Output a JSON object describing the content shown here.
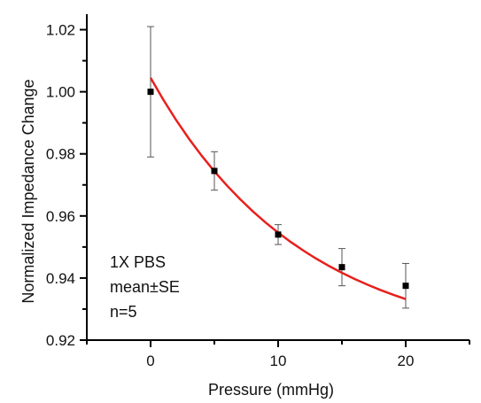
{
  "chart_data": {
    "type": "scatter",
    "xlabel": "Pressure (mmHg)",
    "ylabel": "Normalized Impedance Change",
    "xlim": [
      -5,
      25
    ],
    "ylim": [
      0.92,
      1.025
    ],
    "xticks": [
      0,
      10,
      20
    ],
    "xtick_labels": [
      "0",
      "10",
      "20"
    ],
    "xminor": [
      -5,
      5,
      15,
      25
    ],
    "yticks": [
      0.92,
      0.94,
      0.96,
      0.98,
      1.0,
      1.02
    ],
    "ytick_labels": [
      "0.92",
      "0.94",
      "0.96",
      "0.98",
      "1.00",
      "1.02"
    ],
    "yminor": [
      0.93,
      0.95,
      0.97,
      0.99,
      1.01
    ],
    "grid": false,
    "points": {
      "x": [
        0,
        5,
        10,
        15,
        20
      ],
      "y": [
        1.0,
        0.9745,
        0.954,
        0.9435,
        0.9375
      ],
      "err": [
        0.021,
        0.0062,
        0.0032,
        0.006,
        0.0072
      ],
      "color": "#000000"
    },
    "fit": {
      "x": [
        0,
        1,
        2,
        3,
        4,
        5,
        6,
        7,
        8,
        9,
        10,
        11,
        12,
        13,
        14,
        15,
        16,
        17,
        18,
        19,
        20
      ],
      "y": [
        1.0045,
        0.99742,
        0.99091,
        0.98492,
        0.97943,
        0.97437,
        0.96973,
        0.96546,
        0.96154,
        0.95793,
        0.95462,
        0.95158,
        0.94878,
        0.94621,
        0.94385,
        0.94168,
        0.93969,
        0.93786,
        0.93618,
        0.93463,
        0.93321
      ],
      "color": "#e8201c"
    },
    "annotation_lines": [
      "1X PBS",
      "mean±SE",
      "n=5"
    ]
  }
}
